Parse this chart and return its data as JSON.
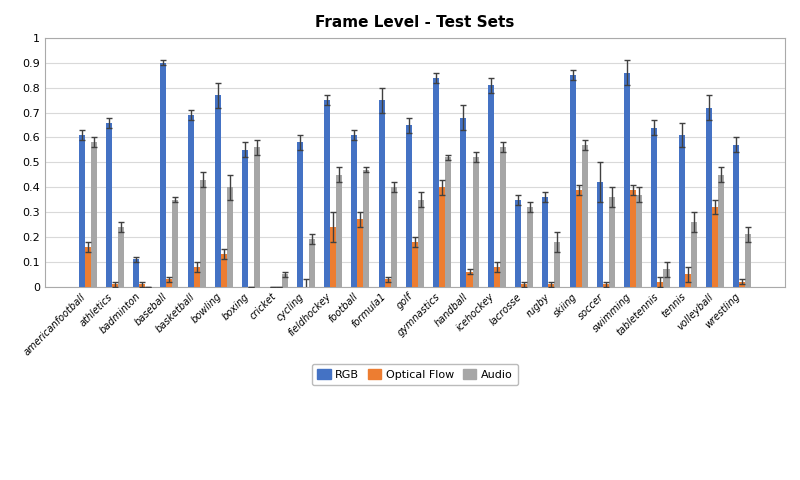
{
  "title": "Frame Level - Test Sets",
  "categories": [
    "americanfootball",
    "athletics",
    "badminton",
    "baseball",
    "basketball",
    "bowling",
    "boxing",
    "cricket",
    "cycling",
    "fieldhockey",
    "football",
    "formula1",
    "golf",
    "gymnastics",
    "handball",
    "icehockey",
    "lacrosse",
    "rugby",
    "skiing",
    "soccer",
    "swimming",
    "tabletennis",
    "tennis",
    "volleyball",
    "wrestling"
  ],
  "rgb": [
    0.61,
    0.66,
    0.11,
    0.9,
    0.69,
    0.77,
    0.55,
    0.0,
    0.58,
    0.75,
    0.61,
    0.75,
    0.65,
    0.84,
    0.68,
    0.81,
    0.35,
    0.36,
    0.85,
    0.42,
    0.86,
    0.64,
    0.61,
    0.72,
    0.57
  ],
  "optical_flow": [
    0.16,
    0.01,
    0.01,
    0.03,
    0.08,
    0.13,
    0.0,
    0.0,
    0.0,
    0.24,
    0.27,
    0.03,
    0.18,
    0.4,
    0.06,
    0.08,
    0.01,
    0.01,
    0.39,
    0.01,
    0.39,
    0.02,
    0.05,
    0.32,
    0.02
  ],
  "audio": [
    0.58,
    0.24,
    0.0,
    0.35,
    0.43,
    0.4,
    0.56,
    0.05,
    0.19,
    0.45,
    0.47,
    0.4,
    0.35,
    0.52,
    0.52,
    0.56,
    0.32,
    0.18,
    0.57,
    0.36,
    0.37,
    0.07,
    0.26,
    0.45,
    0.21
  ],
  "rgb_err": [
    0.02,
    0.02,
    0.01,
    0.01,
    0.02,
    0.05,
    0.03,
    0.0,
    0.03,
    0.02,
    0.02,
    0.05,
    0.03,
    0.02,
    0.05,
    0.03,
    0.02,
    0.02,
    0.02,
    0.08,
    0.05,
    0.03,
    0.05,
    0.05,
    0.03
  ],
  "optical_flow_err": [
    0.02,
    0.01,
    0.01,
    0.01,
    0.02,
    0.02,
    0.0,
    0.0,
    0.03,
    0.06,
    0.03,
    0.01,
    0.02,
    0.03,
    0.01,
    0.02,
    0.01,
    0.01,
    0.02,
    0.01,
    0.02,
    0.02,
    0.03,
    0.03,
    0.01
  ],
  "audio_err": [
    0.02,
    0.02,
    0.0,
    0.01,
    0.03,
    0.05,
    0.03,
    0.01,
    0.02,
    0.03,
    0.01,
    0.02,
    0.03,
    0.01,
    0.02,
    0.02,
    0.02,
    0.04,
    0.02,
    0.04,
    0.03,
    0.03,
    0.04,
    0.03,
    0.03
  ],
  "bar_color_rgb": "#4472C4",
  "bar_color_of": "#ED7D31",
  "bar_color_audio": "#A6A6A6",
  "legend_labels": [
    "RGB",
    "Optical Flow",
    "Audio"
  ],
  "ylim": [
    0,
    1.0
  ],
  "ytick_vals": [
    0,
    0.1,
    0.2,
    0.3,
    0.4,
    0.5,
    0.6,
    0.7,
    0.8,
    0.9,
    1
  ],
  "ytick_labels": [
    "0",
    "0.1",
    "0.2",
    "0.3",
    "0.4",
    "0.5",
    "0.6",
    "0.7",
    "0.8",
    "0.9",
    "1"
  ],
  "figsize": [
    8.0,
    4.8
  ],
  "dpi": 100,
  "bar_width": 0.22,
  "title_fontsize": 11,
  "tick_fontsize": 7,
  "legend_fontsize": 8
}
